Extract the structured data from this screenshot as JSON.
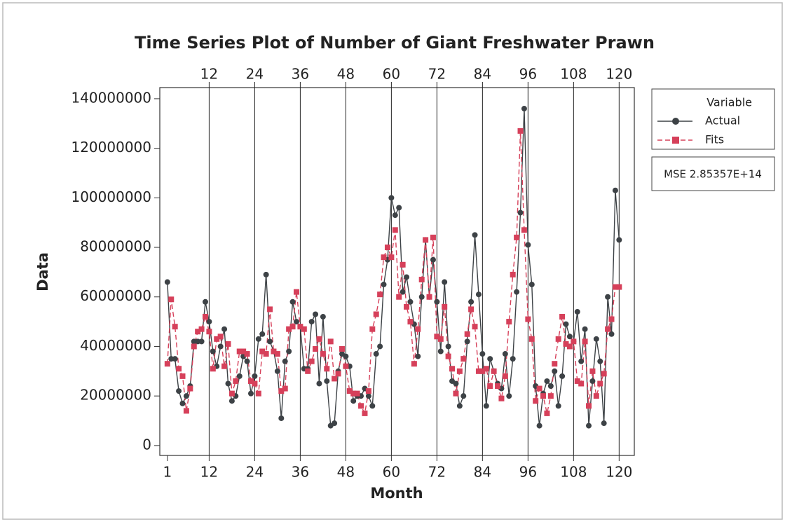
{
  "chart_data": {
    "type": "line",
    "title": "Time Series Plot of Number of Giant Freshwater Prawn",
    "xlabel": "Month",
    "ylabel": "Data",
    "x": [
      1,
      2,
      3,
      4,
      5,
      6,
      7,
      8,
      9,
      10,
      11,
      12,
      13,
      14,
      15,
      16,
      17,
      18,
      19,
      20,
      21,
      22,
      23,
      24,
      25,
      26,
      27,
      28,
      29,
      30,
      31,
      32,
      33,
      34,
      35,
      36,
      37,
      38,
      39,
      40,
      41,
      42,
      43,
      44,
      45,
      46,
      47,
      48,
      49,
      50,
      51,
      52,
      53,
      54,
      55,
      56,
      57,
      58,
      59,
      60,
      61,
      62,
      63,
      64,
      65,
      66,
      67,
      68,
      69,
      70,
      71,
      72,
      73,
      74,
      75,
      76,
      77,
      78,
      79,
      80,
      81,
      82,
      83,
      84,
      85,
      86,
      87,
      88,
      89,
      90,
      91,
      92,
      93,
      94,
      95,
      96,
      97,
      98,
      99,
      100,
      101,
      102,
      103,
      104,
      105,
      106,
      107,
      108,
      109,
      110,
      111,
      112,
      113,
      114,
      115,
      116,
      117,
      118,
      119,
      120
    ],
    "xlim": [
      -1,
      124
    ],
    "xticks": [
      1,
      12,
      24,
      36,
      48,
      60,
      72,
      84,
      96,
      108,
      120
    ],
    "x2ticks": [
      12,
      24,
      36,
      48,
      60,
      72,
      84,
      96,
      108,
      120
    ],
    "ylim": [
      -4000000,
      144500000
    ],
    "yticks": [
      0,
      20000000,
      40000000,
      60000000,
      80000000,
      100000000,
      120000000,
      140000000
    ],
    "legend_title": "Variable",
    "legend_position": "right",
    "annotation": "MSE 2.85357E+14",
    "series": [
      {
        "name": "Actual",
        "color": "#3d4246",
        "marker": "circle",
        "dashed": false,
        "values": [
          66000000,
          35000000,
          35000000,
          22000000,
          17000000,
          20000000,
          24000000,
          42000000,
          42000000,
          42000000,
          58000000,
          50000000,
          38000000,
          32000000,
          40000000,
          47000000,
          25000000,
          18000000,
          20000000,
          28000000,
          36000000,
          34000000,
          21000000,
          28000000,
          43000000,
          45000000,
          69000000,
          42000000,
          38000000,
          30000000,
          11000000,
          34000000,
          38000000,
          58000000,
          50000000,
          48000000,
          31000000,
          31000000,
          50000000,
          53000000,
          25000000,
          52000000,
          26000000,
          8000000,
          9000000,
          30000000,
          37000000,
          36000000,
          32000000,
          18000000,
          20000000,
          20000000,
          23000000,
          20000000,
          16000000,
          37000000,
          40000000,
          65000000,
          75000000,
          100000000,
          93000000,
          96000000,
          62000000,
          68000000,
          58000000,
          49000000,
          36000000,
          60000000,
          83000000,
          60000000,
          75000000,
          58000000,
          38000000,
          66000000,
          40000000,
          26000000,
          25000000,
          16000000,
          20000000,
          42000000,
          58000000,
          85000000,
          61000000,
          37000000,
          16000000,
          35000000,
          30000000,
          25000000,
          23000000,
          37000000,
          20000000,
          35000000,
          62000000,
          94000000,
          136000000,
          81000000,
          65000000,
          24000000,
          8000000,
          21000000,
          26000000,
          24000000,
          30000000,
          16000000,
          28000000,
          49000000,
          44000000,
          42000000,
          54000000,
          34000000,
          47000000,
          8000000,
          26000000,
          43000000,
          34000000,
          9000000,
          60000000,
          45000000,
          103000000,
          83000000
        ]
      },
      {
        "name": "Fits",
        "color": "#d6405a",
        "marker": "square",
        "dashed": true,
        "values": [
          33000000,
          59000000,
          48000000,
          31000000,
          28000000,
          14000000,
          23000000,
          40000000,
          46000000,
          47000000,
          52000000,
          46000000,
          31000000,
          43000000,
          44000000,
          32000000,
          41000000,
          21000000,
          26000000,
          38000000,
          38000000,
          37000000,
          26000000,
          25000000,
          21000000,
          38000000,
          37000000,
          55000000,
          38000000,
          37000000,
          22000000,
          23000000,
          47000000,
          48000000,
          62000000,
          48000000,
          47000000,
          30000000,
          34000000,
          39000000,
          43000000,
          37000000,
          31000000,
          42000000,
          27000000,
          29000000,
          39000000,
          32000000,
          22000000,
          21000000,
          21000000,
          16000000,
          13000000,
          22000000,
          47000000,
          53000000,
          61000000,
          76000000,
          80000000,
          76000000,
          87000000,
          60000000,
          73000000,
          56000000,
          50000000,
          33000000,
          47000000,
          67000000,
          83000000,
          60000000,
          84000000,
          44000000,
          43000000,
          56000000,
          36000000,
          31000000,
          21000000,
          30000000,
          35000000,
          45000000,
          55000000,
          48000000,
          30000000,
          30000000,
          31000000,
          24000000,
          30000000,
          24000000,
          19000000,
          28000000,
          50000000,
          69000000,
          84000000,
          127000000,
          87000000,
          51000000,
          43000000,
          18000000,
          23000000,
          20000000,
          13000000,
          20000000,
          33000000,
          43000000,
          52000000,
          41000000,
          40000000,
          42000000,
          26000000,
          25000000,
          42000000,
          16000000,
          30000000,
          20000000,
          25000000,
          29000000,
          47000000,
          51000000,
          64000000,
          64000000
        ]
      }
    ]
  }
}
